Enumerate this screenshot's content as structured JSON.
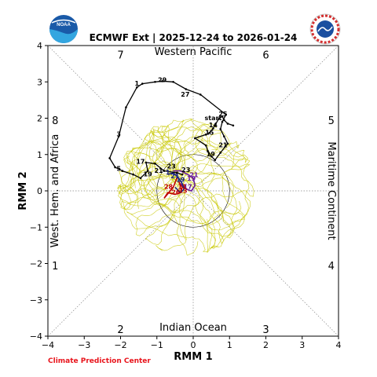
{
  "title": "ECMWF Ext | 2025-12-24 to 2026-01-24",
  "credit": "Climate Prediction Center",
  "logos": {
    "left": "NOAA",
    "right": "NATIONAL WEATHER SERVICE"
  },
  "colors": {
    "observed": "#000000",
    "ensemble": "#c8c800",
    "mean_a": "#c00000",
    "mean_b": "#6a1b9a",
    "mean_c": "#1a237e",
    "credit": "#e8141c"
  },
  "chart_data": {
    "type": "line",
    "xlabel": "RMM 1",
    "ylabel": "RMM 2",
    "xlim": [
      -4,
      4
    ],
    "ylim": [
      -4,
      4
    ],
    "xticks": [
      "−4",
      "−3",
      "−2",
      "−1",
      "0",
      "1",
      "2",
      "3",
      "4"
    ],
    "yticks": [
      "−4",
      "−3",
      "−2",
      "−1",
      "0",
      "1",
      "2",
      "3",
      "4"
    ],
    "phases": [
      {
        "label": "7",
        "pos": [
          -2.0,
          3.75
        ]
      },
      {
        "label": "6",
        "pos": [
          2.0,
          3.75
        ]
      },
      {
        "label": "8",
        "pos": [
          -3.8,
          1.95
        ]
      },
      {
        "label": "5",
        "pos": [
          3.8,
          1.95
        ]
      },
      {
        "label": "1",
        "pos": [
          -3.8,
          -2.05
        ]
      },
      {
        "label": "4",
        "pos": [
          3.8,
          -2.05
        ]
      },
      {
        "label": "2",
        "pos": [
          -2.0,
          -3.8
        ]
      },
      {
        "label": "3",
        "pos": [
          2.0,
          -3.8
        ]
      }
    ],
    "regions": {
      "top": "Western Pacific",
      "bottom": "Indian Ocean",
      "left": "West. Hem. and Africa",
      "right": "Maritime Continent"
    },
    "observed": {
      "x": [
        1.1,
        0.95,
        0.85,
        0.8,
        0.7,
        0.55,
        0.45,
        0.35,
        0.05,
        0.35,
        0.4,
        0.5,
        0.6,
        0.75,
        0.95,
        0.85,
        0.75,
        0.8,
        0.9,
        0.2,
        -0.2,
        -0.55,
        -0.85,
        -1.05,
        -1.4,
        -1.55,
        -1.85,
        -2.05,
        -2.3,
        -2.15,
        -1.95,
        -1.65,
        -1.45,
        -1.25,
        -1.3,
        -1.05,
        -0.8,
        -0.45,
        -0.3
      ],
      "y": [
        1.8,
        1.85,
        1.95,
        2.05,
        1.98,
        1.72,
        1.6,
        1.55,
        1.45,
        1.25,
        1.1,
        0.95,
        0.85,
        1.05,
        1.3,
        1.5,
        1.7,
        1.9,
        2.1,
        2.65,
        2.8,
        3.0,
        3.02,
        3.0,
        2.95,
        2.85,
        2.3,
        1.5,
        0.9,
        0.65,
        0.55,
        0.45,
        0.35,
        0.55,
        0.78,
        0.75,
        0.55,
        0.5,
        0.45
      ],
      "labels": [
        {
          "text": "start",
          "x": 0.55,
          "y": 1.95
        },
        {
          "text": "25",
          "x": 0.82,
          "y": 2.05
        },
        {
          "text": "14",
          "x": 0.55,
          "y": 1.75
        },
        {
          "text": "15",
          "x": 0.45,
          "y": 1.55
        },
        {
          "text": "21",
          "x": 0.82,
          "y": 1.2
        },
        {
          "text": "19",
          "x": 0.48,
          "y": 0.95
        },
        {
          "text": "27",
          "x": -0.22,
          "y": 2.6
        },
        {
          "text": "29",
          "x": -0.85,
          "y": 3.0
        },
        {
          "text": "1",
          "x": -1.55,
          "y": 2.9
        },
        {
          "text": "3",
          "x": -2.05,
          "y": 1.5
        },
        {
          "text": "5",
          "x": -2.05,
          "y": 0.55
        },
        {
          "text": "17",
          "x": -1.45,
          "y": 0.75
        },
        {
          "text": "19",
          "x": -1.25,
          "y": 0.4
        },
        {
          "text": "21",
          "x": -0.95,
          "y": 0.5
        },
        {
          "text": "23",
          "x": -0.6,
          "y": 0.62
        },
        {
          "text": "23",
          "x": -0.2,
          "y": 0.52
        }
      ]
    },
    "forecast_labels": [
      {
        "text": "21",
        "x": 0.02,
        "y": 0.38,
        "series": "b"
      },
      {
        "text": "19",
        "x": -0.05,
        "y": 0.28,
        "series": "b"
      },
      {
        "text": "17",
        "x": -0.15,
        "y": 0.05,
        "series": "b"
      },
      {
        "text": "19",
        "x": -0.35,
        "y": 0.25,
        "series": "c"
      },
      {
        "text": "21",
        "x": -0.5,
        "y": 0.35,
        "series": "c"
      },
      {
        "text": "1",
        "x": -0.7,
        "y": 0.45,
        "series": "c"
      },
      {
        "text": "26",
        "x": -0.48,
        "y": -0.1,
        "series": "a"
      },
      {
        "text": "28",
        "x": -0.68,
        "y": 0.05,
        "series": "a"
      },
      {
        "text": "13",
        "x": -0.28,
        "y": -0.05,
        "series": "a"
      },
      {
        "text": "11",
        "x": -0.3,
        "y": 0.05,
        "series": "a"
      }
    ],
    "mean_a": {
      "x": [
        -0.45,
        -0.55,
        -0.8,
        -0.7,
        -0.5,
        -0.35,
        -0.3,
        -0.4
      ],
      "y": [
        0.35,
        0.1,
        -0.2,
        -0.05,
        -0.1,
        -0.05,
        0.1,
        0.25
      ]
    },
    "mean_b": {
      "x": [
        -0.55,
        -0.35,
        -0.15,
        0.0,
        0.05,
        -0.05,
        -0.2,
        -0.35
      ],
      "y": [
        0.55,
        0.55,
        0.45,
        0.35,
        0.15,
        0.0,
        0.05,
        0.2
      ]
    },
    "mean_c": {
      "x": [
        -0.7,
        -0.55,
        -0.4,
        -0.3,
        -0.25,
        -0.35,
        -0.5
      ],
      "y": [
        0.45,
        0.5,
        0.35,
        0.2,
        0.05,
        -0.05,
        0.1
      ]
    },
    "ensemble_count": 30,
    "ensemble_center": [
      -0.5,
      0.4
    ],
    "grid": true,
    "unit_circle": true
  }
}
